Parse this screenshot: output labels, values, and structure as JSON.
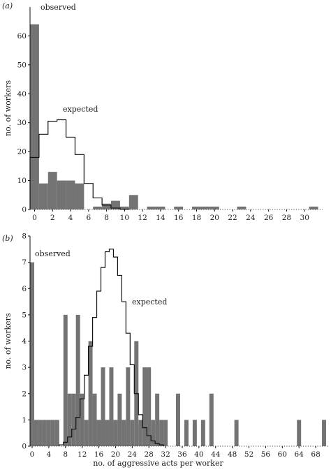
{
  "chart_data": [
    {
      "panel_label": "(a)",
      "type": "bar",
      "ylabel": "no. of workers",
      "xlabel": "",
      "xlim": [
        -0.5,
        32
      ],
      "ylim": [
        0,
        70
      ],
      "x_ticks": [
        0,
        2,
        4,
        6,
        8,
        10,
        12,
        14,
        16,
        18,
        20,
        22,
        24,
        26,
        28,
        30
      ],
      "y_ticks": [
        0,
        10,
        20,
        30,
        40,
        50,
        60
      ],
      "bar_width": 1,
      "series": [
        {
          "name": "observed",
          "kind": "filled-bars",
          "color": "#737373",
          "x": [
            0,
            1,
            2,
            3,
            4,
            5,
            7,
            8,
            9,
            10,
            11,
            13,
            14,
            16,
            18,
            19,
            20,
            23,
            31
          ],
          "values": [
            64,
            9,
            13,
            10,
            10,
            9,
            1,
            2,
            3,
            1,
            5,
            1,
            1,
            1,
            1,
            1,
            1,
            1,
            1
          ]
        },
        {
          "name": "expected",
          "kind": "step-line",
          "color": "#111111",
          "x": [
            0,
            1,
            2,
            3,
            4,
            5,
            6,
            7,
            8,
            9,
            10
          ],
          "values": [
            18,
            26,
            30.5,
            31,
            25,
            19,
            9,
            4,
            1.5,
            0.5,
            0.1
          ]
        }
      ],
      "annotations": [
        {
          "text": "observed",
          "series": "observed"
        },
        {
          "text": "expected",
          "series": "expected"
        }
      ]
    },
    {
      "panel_label": "(b)",
      "type": "bar",
      "ylabel": "no. of workers",
      "xlabel": "no. of aggressive acts per worker",
      "xlim": [
        -0.5,
        71
      ],
      "ylim": [
        0,
        8
      ],
      "x_ticks": [
        0,
        4,
        8,
        12,
        16,
        20,
        24,
        28,
        32,
        36,
        40,
        44,
        48,
        52,
        56,
        60,
        64,
        68
      ],
      "y_ticks": [
        0,
        1,
        2,
        3,
        4,
        5,
        6,
        7,
        8
      ],
      "bar_width": 1,
      "series": [
        {
          "name": "observed",
          "kind": "filled-bars",
          "color": "#737373",
          "x": [
            0,
            1,
            2,
            3,
            4,
            5,
            6,
            7,
            8,
            9,
            10,
            11,
            12,
            13,
            14,
            15,
            16,
            17,
            18,
            19,
            20,
            21,
            22,
            23,
            24,
            25,
            26,
            27,
            28,
            29,
            30,
            31,
            32,
            35,
            37,
            39,
            41,
            43,
            49,
            64,
            70
          ],
          "values": [
            7,
            1,
            1,
            1,
            1,
            1,
            1,
            0,
            5,
            2,
            2,
            5,
            2,
            1,
            4,
            2,
            1,
            3,
            1,
            3,
            1,
            2,
            1,
            3,
            1,
            4,
            1,
            3,
            3,
            1,
            2,
            1,
            1,
            2,
            1,
            1,
            1,
            2,
            1,
            1,
            1
          ]
        },
        {
          "name": "expected",
          "kind": "step-line",
          "color": "#111111",
          "x": [
            7,
            8,
            9,
            10,
            11,
            12,
            13,
            14,
            15,
            16,
            17,
            18,
            19,
            20,
            21,
            22,
            23,
            24,
            25,
            26,
            27,
            28,
            29,
            30,
            31
          ],
          "values": [
            0.05,
            0.15,
            0.35,
            0.65,
            1.1,
            1.8,
            2.7,
            3.8,
            4.9,
            5.9,
            6.8,
            7.4,
            7.5,
            7.2,
            6.5,
            5.5,
            4.3,
            3.1,
            2.0,
            1.2,
            0.7,
            0.4,
            0.2,
            0.1,
            0.05
          ]
        }
      ],
      "annotations": [
        {
          "text": "observed",
          "series": "observed"
        },
        {
          "text": "expected",
          "series": "expected"
        }
      ]
    }
  ]
}
